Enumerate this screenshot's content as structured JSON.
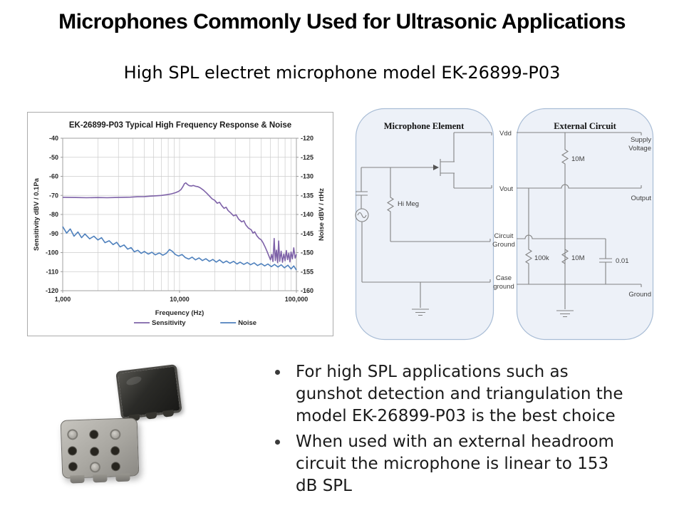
{
  "slide": {
    "title": "Microphones Commonly Used for Ultrasonic Applications",
    "subtitle": "High SPL electret microphone model EK-26899-P03",
    "bullets": [
      {
        "lines": [
          "For high SPL applications such as",
          "gunshot detection and triangulation the",
          "model EK-26899-P03 is the best choice"
        ]
      },
      {
        "lines": [
          "When used with an external headroom",
          "circuit the microphone is linear to 153",
          "dB SPL"
        ]
      }
    ]
  },
  "circuit": {
    "left_title": "Microphone Element",
    "right_title": "External Circuit",
    "labels": {
      "vdd": "Vdd",
      "vout": "Vout",
      "hi_meg": "Hi Meg",
      "circuit_ground": [
        "Circuit",
        "Ground"
      ],
      "case_ground": [
        "Case",
        "ground"
      ],
      "supply_voltage": [
        "Supply",
        "Voltage"
      ],
      "output": "Output",
      "ground": "Ground",
      "r_bias": "10M",
      "r_load": "100k",
      "r_divider": "10M",
      "cap": "0.01"
    }
  },
  "chart_data": {
    "type": "line",
    "title": "EK-26899-P03 Typical High Frequency Response & Noise",
    "xlabel": "Frequency (Hz)",
    "ylabel_left": "Sensitivity dBV / 0.1Pa",
    "ylabel_right": "Noise dBV / rtHz",
    "x_scale": "log",
    "xlim": [
      1000,
      100000
    ],
    "x_ticks": [
      "1,000",
      "10,000",
      "100,000"
    ],
    "ylim_left": [
      -40,
      -120
    ],
    "yticks_left": [
      -40,
      -50,
      -60,
      -70,
      -80,
      -90,
      -100,
      -110,
      -120
    ],
    "ylim_right": [
      -120,
      -160
    ],
    "yticks_right": [
      -120,
      -125,
      -130,
      -135,
      -140,
      -145,
      -150,
      -155,
      -160
    ],
    "grid": true,
    "legend": [
      "Sensitivity",
      "Noise"
    ],
    "legend_position": "bottom",
    "series": [
      {
        "name": "Sensitivity",
        "axis": "left",
        "color": "#7E62A8",
        "points": [
          [
            1000,
            -71
          ],
          [
            1300,
            -71.1
          ],
          [
            1600,
            -71.2
          ],
          [
            2000,
            -71.1
          ],
          [
            2400,
            -71.2
          ],
          [
            2800,
            -71.1
          ],
          [
            3300,
            -71
          ],
          [
            3800,
            -70.9
          ],
          [
            4400,
            -70.7
          ],
          [
            5000,
            -70.6
          ],
          [
            5600,
            -70.4
          ],
          [
            6300,
            -70.2
          ],
          [
            7000,
            -70
          ],
          [
            7800,
            -69.6
          ],
          [
            8500,
            -69.2
          ],
          [
            9200,
            -68.6
          ],
          [
            9800,
            -67.9
          ],
          [
            10300,
            -66.9
          ],
          [
            10700,
            -65.3
          ],
          [
            11000,
            -63.9
          ],
          [
            11300,
            -63.4
          ],
          [
            11700,
            -64.3
          ],
          [
            12100,
            -64.9
          ],
          [
            12600,
            -65.1
          ],
          [
            13100,
            -64.8
          ],
          [
            13700,
            -65.2
          ],
          [
            14300,
            -65.4
          ],
          [
            15000,
            -66
          ],
          [
            16000,
            -67.2
          ],
          [
            17000,
            -68.7
          ],
          [
            18000,
            -70.3
          ],
          [
            19000,
            -71.8
          ],
          [
            20000,
            -72.6
          ],
          [
            21000,
            -74.1
          ],
          [
            22000,
            -73.6
          ],
          [
            23000,
            -75.4
          ],
          [
            24000,
            -76.8
          ],
          [
            25000,
            -76.2
          ],
          [
            26000,
            -77.9
          ],
          [
            27500,
            -79.3
          ],
          [
            29000,
            -80.7
          ],
          [
            30500,
            -80.2
          ],
          [
            32000,
            -82.4
          ],
          [
            34000,
            -83.9
          ],
          [
            35500,
            -83.3
          ],
          [
            37000,
            -85.6
          ],
          [
            39000,
            -87.2
          ],
          [
            41000,
            -88
          ],
          [
            42500,
            -89.8
          ],
          [
            44000,
            -89.1
          ],
          [
            46000,
            -91.3
          ],
          [
            48000,
            -92.6
          ],
          [
            50000,
            -93.3
          ],
          [
            52000,
            -95
          ],
          [
            54000,
            -97.1
          ],
          [
            56000,
            -99.3
          ],
          [
            58000,
            -101.6
          ],
          [
            60000,
            -103.8
          ],
          [
            61500,
            -100.9
          ],
          [
            63000,
            -104.7
          ],
          [
            64500,
            -92.6
          ],
          [
            66000,
            -104.2
          ],
          [
            67500,
            -98.7
          ],
          [
            69000,
            -105.3
          ],
          [
            70500,
            -93.9
          ],
          [
            72000,
            -104.6
          ],
          [
            74000,
            -99.3
          ],
          [
            76000,
            -105.1
          ],
          [
            78000,
            -100.7
          ],
          [
            80000,
            -104.3
          ],
          [
            82000,
            -98.9
          ],
          [
            84000,
            -103.7
          ],
          [
            86000,
            -100.3
          ],
          [
            88000,
            -104.9
          ],
          [
            90000,
            -99.7
          ],
          [
            92500,
            -103.3
          ],
          [
            95000,
            -97.5
          ],
          [
            97500,
            -102.9
          ],
          [
            100000,
            -100.9
          ]
        ]
      },
      {
        "name": "Noise",
        "axis": "right",
        "color": "#4F81BD",
        "points": [
          [
            1000,
            -143.2
          ],
          [
            1080,
            -144.9
          ],
          [
            1160,
            -143.8
          ],
          [
            1250,
            -145.7
          ],
          [
            1350,
            -144.6
          ],
          [
            1450,
            -146.1
          ],
          [
            1550,
            -145.1
          ],
          [
            1700,
            -146.4
          ],
          [
            1850,
            -145.7
          ],
          [
            2000,
            -146.7
          ],
          [
            2150,
            -146.1
          ],
          [
            2300,
            -147.4
          ],
          [
            2500,
            -146.9
          ],
          [
            2700,
            -147.9
          ],
          [
            2900,
            -147.3
          ],
          [
            3100,
            -148.5
          ],
          [
            3350,
            -148
          ],
          [
            3600,
            -149.1
          ],
          [
            3850,
            -148.7
          ],
          [
            4100,
            -149.8
          ],
          [
            4400,
            -149.4
          ],
          [
            4700,
            -150.2
          ],
          [
            5000,
            -149.7
          ],
          [
            5400,
            -150.4
          ],
          [
            5800,
            -149.9
          ],
          [
            6200,
            -150.6
          ],
          [
            6700,
            -150.1
          ],
          [
            7200,
            -150.7
          ],
          [
            7700,
            -150.2
          ],
          [
            8200,
            -149.2
          ],
          [
            8700,
            -149.7
          ],
          [
            9200,
            -150.5
          ],
          [
            9800,
            -150.9
          ],
          [
            10500,
            -150.5
          ],
          [
            11200,
            -151.3
          ],
          [
            12000,
            -151.7
          ],
          [
            12800,
            -151.2
          ],
          [
            13700,
            -151.9
          ],
          [
            14700,
            -151.4
          ],
          [
            15700,
            -152.1
          ],
          [
            16800,
            -151.6
          ],
          [
            18000,
            -152.3
          ],
          [
            19300,
            -151.8
          ],
          [
            20600,
            -152.5
          ],
          [
            22000,
            -151.9
          ],
          [
            23600,
            -152.7
          ],
          [
            25200,
            -152.2
          ],
          [
            27000,
            -152.8
          ],
          [
            29000,
            -152.3
          ],
          [
            31000,
            -153
          ],
          [
            33000,
            -152.5
          ],
          [
            35500,
            -153.1
          ],
          [
            38000,
            -152.6
          ],
          [
            40500,
            -153.2
          ],
          [
            43500,
            -152.7
          ],
          [
            46500,
            -153.4
          ],
          [
            50000,
            -152.9
          ],
          [
            53500,
            -153.5
          ],
          [
            57000,
            -153
          ],
          [
            61000,
            -153.7
          ],
          [
            65000,
            -153.1
          ],
          [
            69500,
            -153.8
          ],
          [
            74000,
            -153.2
          ],
          [
            79000,
            -154
          ],
          [
            84500,
            -153.3
          ],
          [
            90000,
            -154.3
          ],
          [
            95000,
            -153.5
          ],
          [
            100000,
            -154.6
          ]
        ]
      }
    ]
  }
}
